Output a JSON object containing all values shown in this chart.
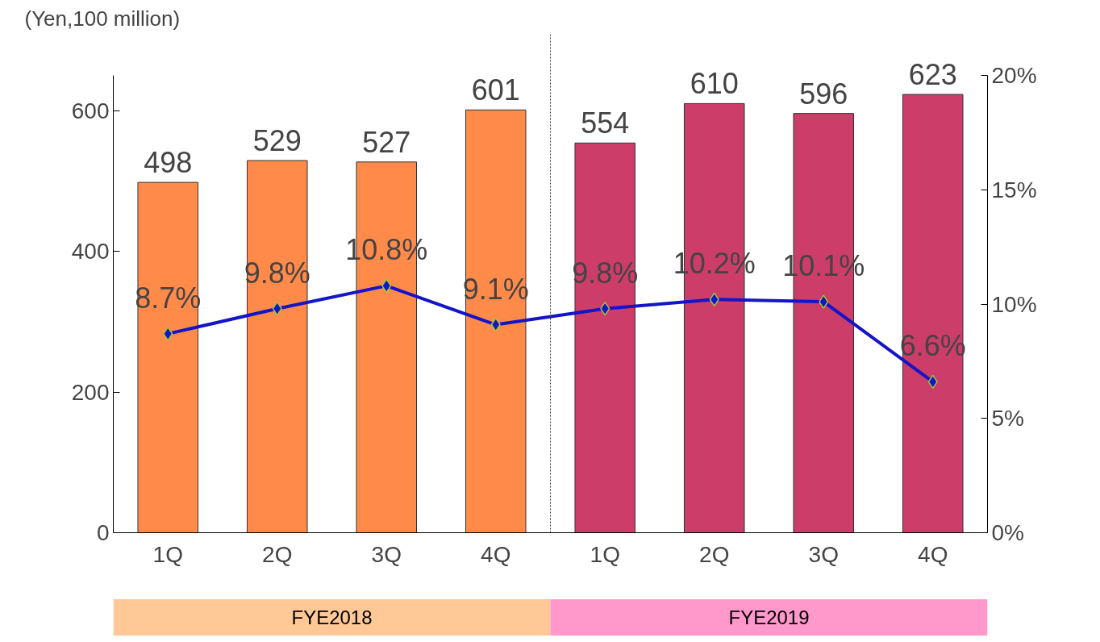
{
  "chart_data": {
    "type": "bar",
    "ylabel": "(Yen,100 million)",
    "categories": [
      "1Q",
      "2Q",
      "3Q",
      "4Q",
      "1Q",
      "2Q",
      "3Q",
      "4Q"
    ],
    "series": [
      {
        "type": "bar",
        "values": [
          498,
          529,
          527,
          601,
          554,
          610,
          596,
          623
        ],
        "colors": [
          "#ff8a4a",
          "#ff8a4a",
          "#ff8a4a",
          "#ff8a4a",
          "#cc3d6a",
          "#cc3d6a",
          "#cc3d6a",
          "#cc3d6a"
        ]
      },
      {
        "type": "line",
        "axis": "y2",
        "color": "#1414c8",
        "values": [
          8.7,
          9.8,
          10.8,
          9.1,
          9.8,
          10.2,
          10.1,
          6.6
        ],
        "value_labels": [
          "8.7%",
          "9.8%",
          "10.8%",
          "9.1%",
          "9.8%",
          "10.2%",
          "10.1%",
          "6.6%"
        ]
      }
    ],
    "data_labels": true,
    "marker": "diamond",
    "ylim": [
      0,
      650
    ],
    "yticks": [
      0,
      200,
      400,
      600
    ],
    "y2lim": [
      0,
      20
    ],
    "y2ticks": [
      {
        "value": 0,
        "label": "0%"
      },
      {
        "value": 5,
        "label": "5%"
      },
      {
        "value": 10,
        "label": "10%"
      },
      {
        "value": 15,
        "label": "15%"
      },
      {
        "value": 20,
        "label": "20%"
      }
    ],
    "grid": false,
    "annotations": [
      "FYE2018",
      "FYE2019"
    ]
  }
}
